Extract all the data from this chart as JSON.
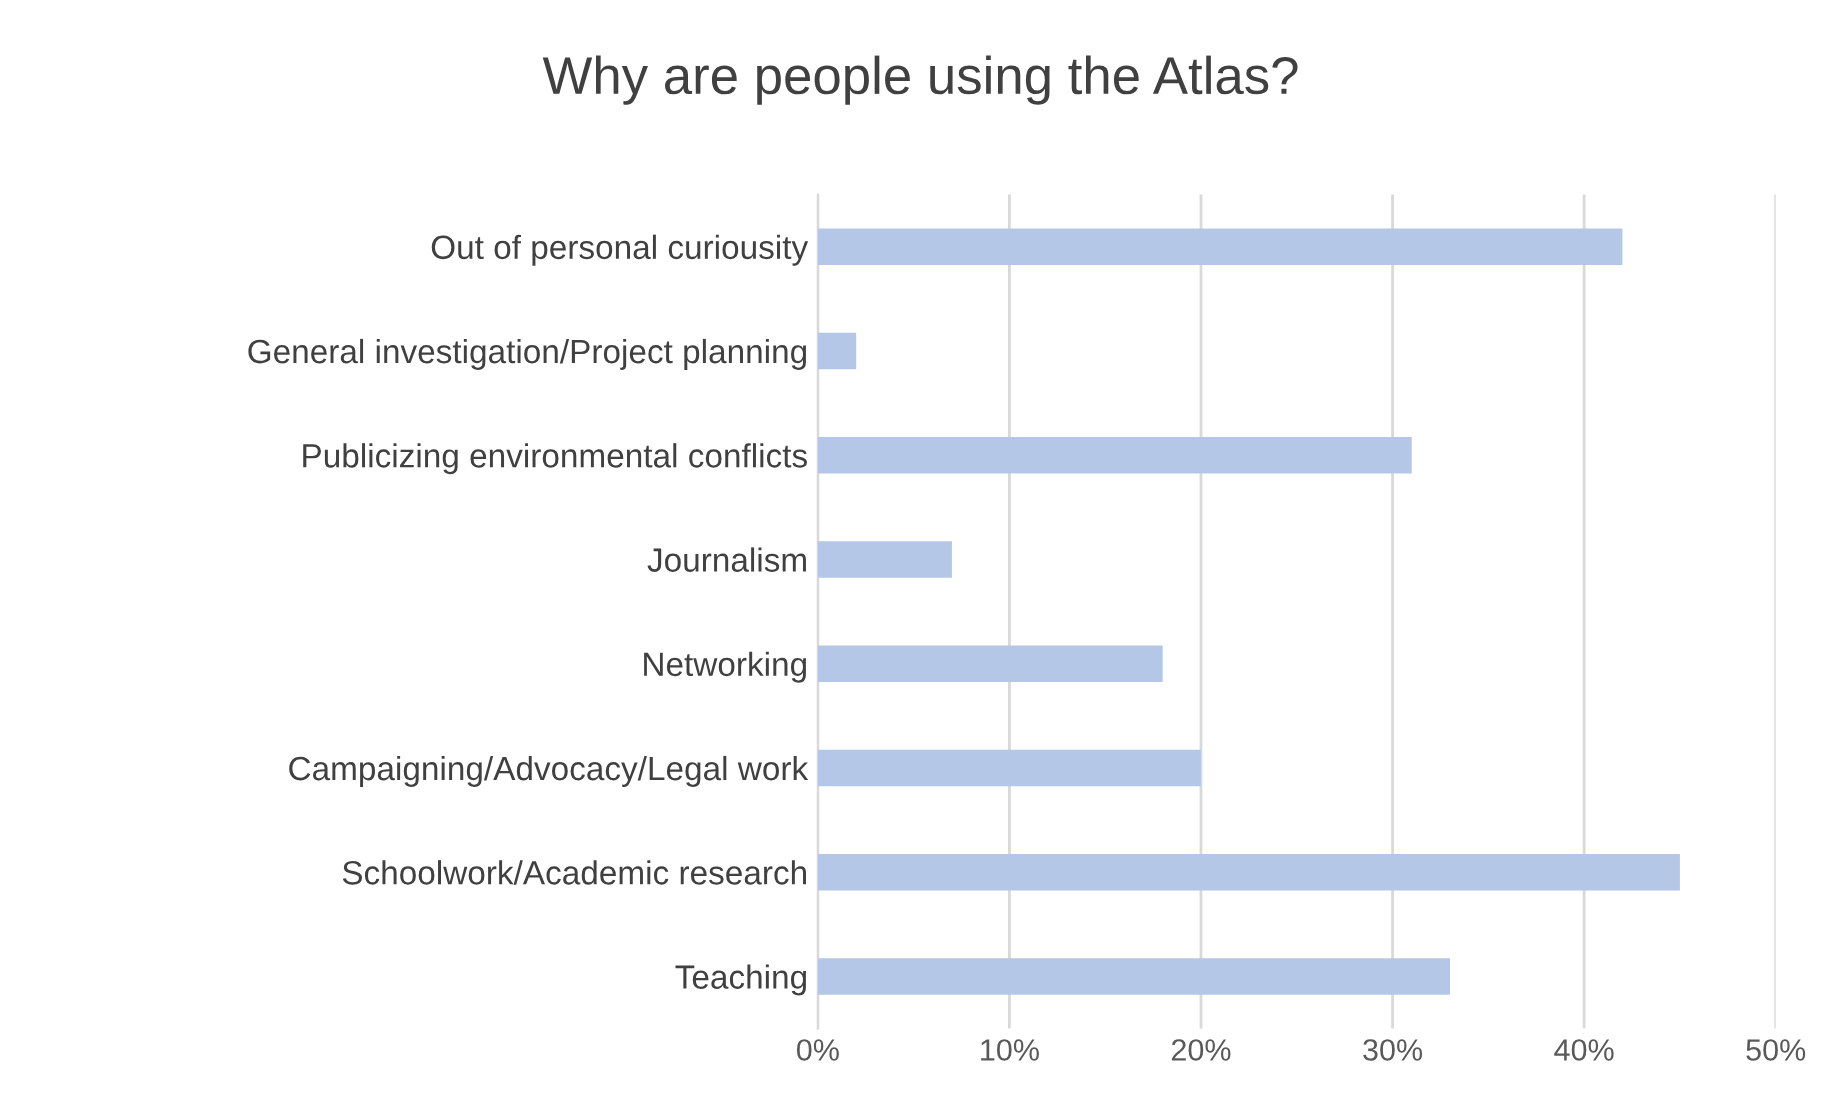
{
  "chart_data": {
    "type": "bar",
    "orientation": "horizontal",
    "title": "Why are people using the Atlas?",
    "categories": [
      "Out of personal curiousity",
      "General investigation/Project planning",
      "Publicizing environmental conflicts",
      "Journalism",
      "Networking",
      "Campaigning/Advocacy/Legal work",
      "Schoolwork/Academic research",
      "Teaching"
    ],
    "values": [
      42,
      2,
      31,
      7,
      18,
      20,
      45,
      33
    ],
    "color": "#b4c7e7",
    "xlim": [
      0,
      50
    ],
    "xticks": [
      {
        "value": 0,
        "label": "0%"
      },
      {
        "value": 10,
        "label": "10%"
      },
      {
        "value": 20,
        "label": "20%"
      },
      {
        "value": 30,
        "label": "30%"
      },
      {
        "value": 40,
        "label": "40%"
      },
      {
        "value": 50,
        "label": "50%"
      }
    ],
    "grid": "x"
  }
}
